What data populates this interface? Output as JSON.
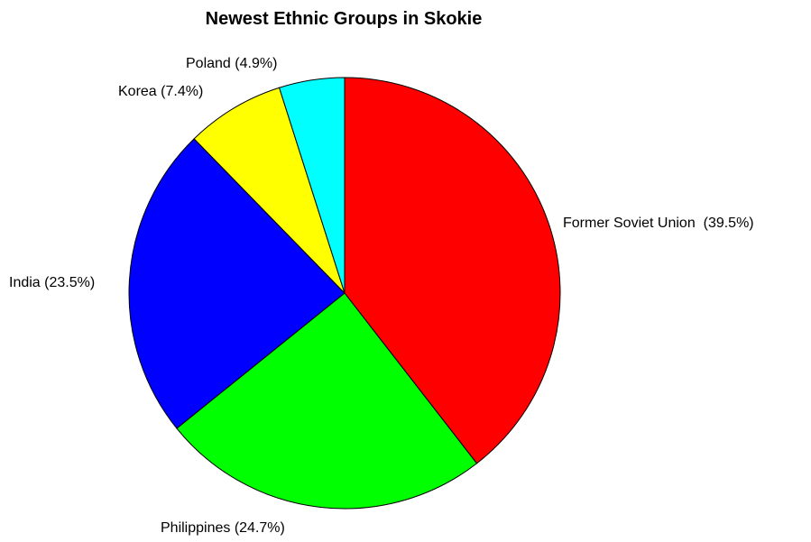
{
  "chart_data": {
    "type": "pie",
    "title": "Newest Ethnic Groups in Skokie",
    "start_angle_deg": 0,
    "direction": "clockwise",
    "legend": "none",
    "slices": [
      {
        "name": "Former Soviet Union",
        "value": 39.5,
        "label": "Former Soviet Union  (39.5%)",
        "color": "#ff0000"
      },
      {
        "name": "Philippines",
        "value": 24.7,
        "label": "Philippines (24.7%)",
        "color": "#00ff00"
      },
      {
        "name": "India",
        "value": 23.5,
        "label": "India (23.5%)",
        "color": "#0000ff"
      },
      {
        "name": "Korea",
        "value": 7.4,
        "label": "Korea (7.4%)",
        "color": "#ffff00"
      },
      {
        "name": "Poland",
        "value": 4.9,
        "label": "Poland (4.9%)",
        "color": "#00ffff"
      }
    ]
  }
}
